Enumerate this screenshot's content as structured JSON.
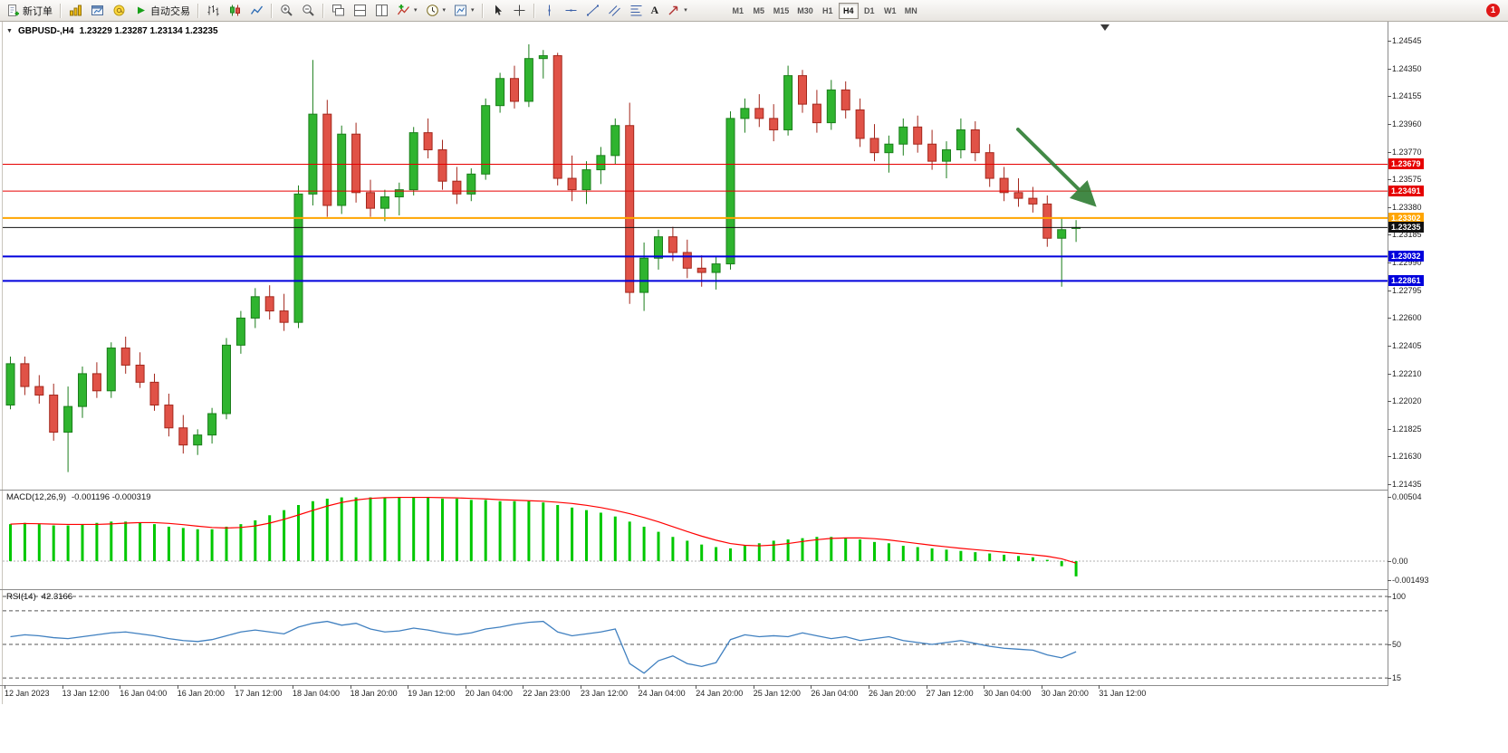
{
  "toolbar": {
    "new_order_label": "新订单",
    "autotrading_label": "自动交易",
    "text_tool_label": "A",
    "timeframes": [
      "M1",
      "M5",
      "M15",
      "M30",
      "H1",
      "H4",
      "D1",
      "W1",
      "MN"
    ],
    "active_timeframe": "H4",
    "alert_badge": "1"
  },
  "icons": {
    "dropdown_caret": "▾",
    "collapse_marker": "▼"
  },
  "colors": {
    "candle_up_fill": "#2fb42f",
    "candle_up_stroke": "#1b7e1b",
    "candle_down_fill": "#e05247",
    "candle_down_stroke": "#a3271c",
    "macd_histogram": "#00c800",
    "macd_signal": "#ff0000",
    "rsi_line": "#4080c0",
    "trend_arrow": "#2e7d32",
    "level_red": "#e60000",
    "level_orange": "#ffa500",
    "level_blue": "#0000dc",
    "current_price": "#111111"
  },
  "chart_data": [
    {
      "type": "candlestick",
      "title": "GBPUSD-,H4",
      "current_ohlc": "1.23229 1.23287 1.23134 1.23235",
      "price_range": [
        1.21435,
        1.24545
      ],
      "y_labels": [
        "1.24545",
        "1.24350",
        "1.24155",
        "1.23960",
        "1.23770",
        "1.23575",
        "1.23380",
        "1.23185",
        "1.22990",
        "1.22795",
        "1.22600",
        "1.22405",
        "1.22210",
        "1.22020",
        "1.21825",
        "1.21630",
        "1.21435"
      ],
      "x_labels": [
        "12 Jan 2023",
        "13 Jan 12:00",
        "16 Jan 04:00",
        "16 Jan 20:00",
        "17 Jan 12:00",
        "18 Jan 04:00",
        "18 Jan 20:00",
        "19 Jan 12:00",
        "20 Jan 04:00",
        "22 Jan 23:00",
        "23 Jan 12:00",
        "24 Jan 04:00",
        "24 Jan 20:00",
        "25 Jan 12:00",
        "26 Jan 04:00",
        "26 Jan 20:00",
        "27 Jan 12:00",
        "30 Jan 04:00",
        "30 Jan 20:00",
        "31 Jan 12:00"
      ],
      "hlines": [
        {
          "price": 1.23679,
          "tag": "1.23679",
          "color_key": "level_red",
          "width": 1
        },
        {
          "price": 1.23491,
          "tag": "1.23491",
          "color_key": "level_red",
          "width": 1
        },
        {
          "price": 1.23302,
          "tag": "1.23302",
          "color_key": "level_orange",
          "width": 2
        },
        {
          "price": 1.23235,
          "tag": "1.23235",
          "color_key": "current_price",
          "width": 1
        },
        {
          "price": 1.23032,
          "tag": "1.23032",
          "color_key": "level_blue",
          "width": 2
        },
        {
          "price": 1.22861,
          "tag": "1.22861",
          "color_key": "level_blue",
          "width": 2
        }
      ],
      "ohlc": [
        [
          1.2199,
          1.2233,
          1.2196,
          1.2228
        ],
        [
          1.2228,
          1.2233,
          1.2206,
          1.2212
        ],
        [
          1.2212,
          1.222,
          1.22,
          1.2206
        ],
        [
          1.2206,
          1.2214,
          1.2174,
          1.218
        ],
        [
          1.218,
          1.2212,
          1.2152,
          1.2198
        ],
        [
          1.2198,
          1.2226,
          1.219,
          1.2221
        ],
        [
          1.2221,
          1.2229,
          1.2204,
          1.2209
        ],
        [
          1.2209,
          1.2243,
          1.2204,
          1.2239
        ],
        [
          1.2239,
          1.2247,
          1.2221,
          1.2227
        ],
        [
          1.2227,
          1.2236,
          1.2211,
          1.2215
        ],
        [
          1.2215,
          1.2221,
          1.2195,
          1.2199
        ],
        [
          1.2199,
          1.2207,
          1.2177,
          1.2183
        ],
        [
          1.2183,
          1.2192,
          1.2165,
          1.2171
        ],
        [
          1.2171,
          1.2182,
          1.2164,
          1.2178
        ],
        [
          1.2178,
          1.2197,
          1.2172,
          1.2193
        ],
        [
          1.2193,
          1.2246,
          1.2189,
          1.2241
        ],
        [
          1.2241,
          1.2265,
          1.2235,
          1.226
        ],
        [
          1.226,
          1.2281,
          1.2253,
          1.2275
        ],
        [
          1.2275,
          1.2283,
          1.2259,
          1.2265
        ],
        [
          1.2265,
          1.2277,
          1.2251,
          1.2257
        ],
        [
          1.2257,
          1.2353,
          1.2253,
          1.2347
        ],
        [
          1.2347,
          1.2441,
          1.2339,
          1.2403
        ],
        [
          1.2403,
          1.2413,
          1.2331,
          1.2339
        ],
        [
          1.2339,
          1.2395,
          1.2333,
          1.2389
        ],
        [
          1.2389,
          1.2397,
          1.2341,
          1.2348
        ],
        [
          1.2348,
          1.2357,
          1.2331,
          1.2337
        ],
        [
          1.2337,
          1.235,
          1.2328,
          1.2345
        ],
        [
          1.2345,
          1.2355,
          1.2332,
          1.235
        ],
        [
          1.235,
          1.2394,
          1.2346,
          1.239
        ],
        [
          1.239,
          1.24,
          1.2372,
          1.2378
        ],
        [
          1.2378,
          1.2385,
          1.235,
          1.2356
        ],
        [
          1.2356,
          1.2366,
          1.234,
          1.2347
        ],
        [
          1.2347,
          1.2365,
          1.2342,
          1.2361
        ],
        [
          1.2361,
          1.2414,
          1.2357,
          1.2409
        ],
        [
          1.2409,
          1.2432,
          1.2404,
          1.2428
        ],
        [
          1.2428,
          1.2437,
          1.2407,
          1.2412
        ],
        [
          1.2412,
          1.2452,
          1.2408,
          1.2442
        ],
        [
          1.2442,
          1.2448,
          1.2428,
          1.2444
        ],
        [
          1.2444,
          1.2446,
          1.2353,
          1.2358
        ],
        [
          1.2358,
          1.2374,
          1.2342,
          1.235
        ],
        [
          1.235,
          1.237,
          1.234,
          1.2364
        ],
        [
          1.2364,
          1.238,
          1.2354,
          1.2374
        ],
        [
          1.2374,
          1.24,
          1.2368,
          1.2395
        ],
        [
          1.2395,
          1.2411,
          1.227,
          1.2278
        ],
        [
          1.2278,
          1.2313,
          1.2265,
          1.2302
        ],
        [
          1.2302,
          1.2322,
          1.2294,
          1.2317
        ],
        [
          1.2317,
          1.2324,
          1.23,
          1.2306
        ],
        [
          1.2306,
          1.2315,
          1.2288,
          1.2295
        ],
        [
          1.2295,
          1.2304,
          1.2282,
          1.2292
        ],
        [
          1.2292,
          1.2303,
          1.228,
          1.2298
        ],
        [
          1.2298,
          1.2405,
          1.2294,
          1.24
        ],
        [
          1.24,
          1.2414,
          1.239,
          1.2407
        ],
        [
          1.2407,
          1.2417,
          1.2394,
          1.24
        ],
        [
          1.24,
          1.241,
          1.2384,
          1.2392
        ],
        [
          1.2392,
          1.2437,
          1.2388,
          1.243
        ],
        [
          1.243,
          1.2434,
          1.2404,
          1.241
        ],
        [
          1.241,
          1.242,
          1.239,
          1.2397
        ],
        [
          1.2397,
          1.2427,
          1.2392,
          1.242
        ],
        [
          1.242,
          1.2426,
          1.24,
          1.2406
        ],
        [
          1.2406,
          1.2414,
          1.238,
          1.2386
        ],
        [
          1.2386,
          1.2396,
          1.237,
          1.2376
        ],
        [
          1.2376,
          1.2388,
          1.2362,
          1.2382
        ],
        [
          1.2382,
          1.24,
          1.2374,
          1.2394
        ],
        [
          1.2394,
          1.2402,
          1.2376,
          1.2382
        ],
        [
          1.2382,
          1.2392,
          1.2364,
          1.237
        ],
        [
          1.237,
          1.2384,
          1.2358,
          1.2378
        ],
        [
          1.2378,
          1.24,
          1.2372,
          1.2392
        ],
        [
          1.2392,
          1.2398,
          1.237,
          1.2376
        ],
        [
          1.2376,
          1.2382,
          1.2352,
          1.2358
        ],
        [
          1.2358,
          1.2366,
          1.2342,
          1.2348
        ],
        [
          1.2348,
          1.2358,
          1.2338,
          1.2344
        ],
        [
          1.2344,
          1.2352,
          1.2334,
          1.234
        ],
        [
          1.234,
          1.2346,
          1.231,
          1.2316
        ],
        [
          1.2316,
          1.233,
          1.2282,
          1.2322
        ],
        [
          1.23229,
          1.23287,
          1.23134,
          1.23235
        ]
      ]
    },
    {
      "type": "bar",
      "name": "MACD(12,26,9)",
      "current_values": "-0.001196 -0.000319",
      "ylim": [
        -0.001493,
        0.00504
      ],
      "y_labels": [
        {
          "label": "0.00504",
          "value": 0.00504
        },
        {
          "label": "0.00",
          "value": 0
        },
        {
          "label": "-0.001493",
          "value": -0.001493
        }
      ],
      "histogram": [
        0.0029,
        0.003,
        0.0029,
        0.0028,
        0.0028,
        0.0029,
        0.003,
        0.0031,
        0.0031,
        0.003,
        0.0029,
        0.0027,
        0.0026,
        0.0025,
        0.0025,
        0.0027,
        0.0029,
        0.0032,
        0.0036,
        0.004,
        0.0044,
        0.0047,
        0.0049,
        0.005,
        0.005,
        0.005,
        0.005,
        0.005,
        0.005,
        0.005,
        0.0049,
        0.0049,
        0.0048,
        0.0048,
        0.0047,
        0.0047,
        0.0047,
        0.0046,
        0.0044,
        0.0042,
        0.004,
        0.0038,
        0.0035,
        0.0031,
        0.0027,
        0.0023,
        0.0019,
        0.0016,
        0.0013,
        0.0011,
        0.001,
        0.0012,
        0.0014,
        0.0016,
        0.0017,
        0.0018,
        0.0019,
        0.0019,
        0.0018,
        0.0017,
        0.0015,
        0.0014,
        0.0012,
        0.0011,
        0.001,
        0.0009,
        0.0008,
        0.0007,
        0.0006,
        0.0005,
        0.0004,
        0.0003,
        0.0001,
        -0.0004,
        -0.001196
      ]
    },
    {
      "type": "line",
      "name": "RSI(14)",
      "current_value": "42.3166",
      "levels": [
        100,
        85,
        50,
        15
      ],
      "y_labels": [
        {
          "label": "100",
          "value": 100
        },
        {
          "label": "50",
          "value": 50
        },
        {
          "label": "15",
          "value": 15
        }
      ],
      "values": [
        58,
        60,
        59,
        57,
        56,
        58,
        60,
        62,
        63,
        61,
        59,
        56,
        54,
        53,
        55,
        59,
        63,
        65,
        63,
        61,
        68,
        72,
        74,
        70,
        72,
        66,
        63,
        64,
        67,
        65,
        62,
        60,
        62,
        66,
        68,
        71,
        73,
        74,
        63,
        59,
        61,
        63,
        66,
        30,
        20,
        33,
        38,
        30,
        27,
        31,
        55,
        60,
        58,
        59,
        58,
        62,
        59,
        56,
        58,
        54,
        56,
        58,
        54,
        52,
        50,
        52,
        54,
        51,
        48,
        46,
        45,
        44,
        39,
        36,
        42.3166
      ]
    }
  ]
}
